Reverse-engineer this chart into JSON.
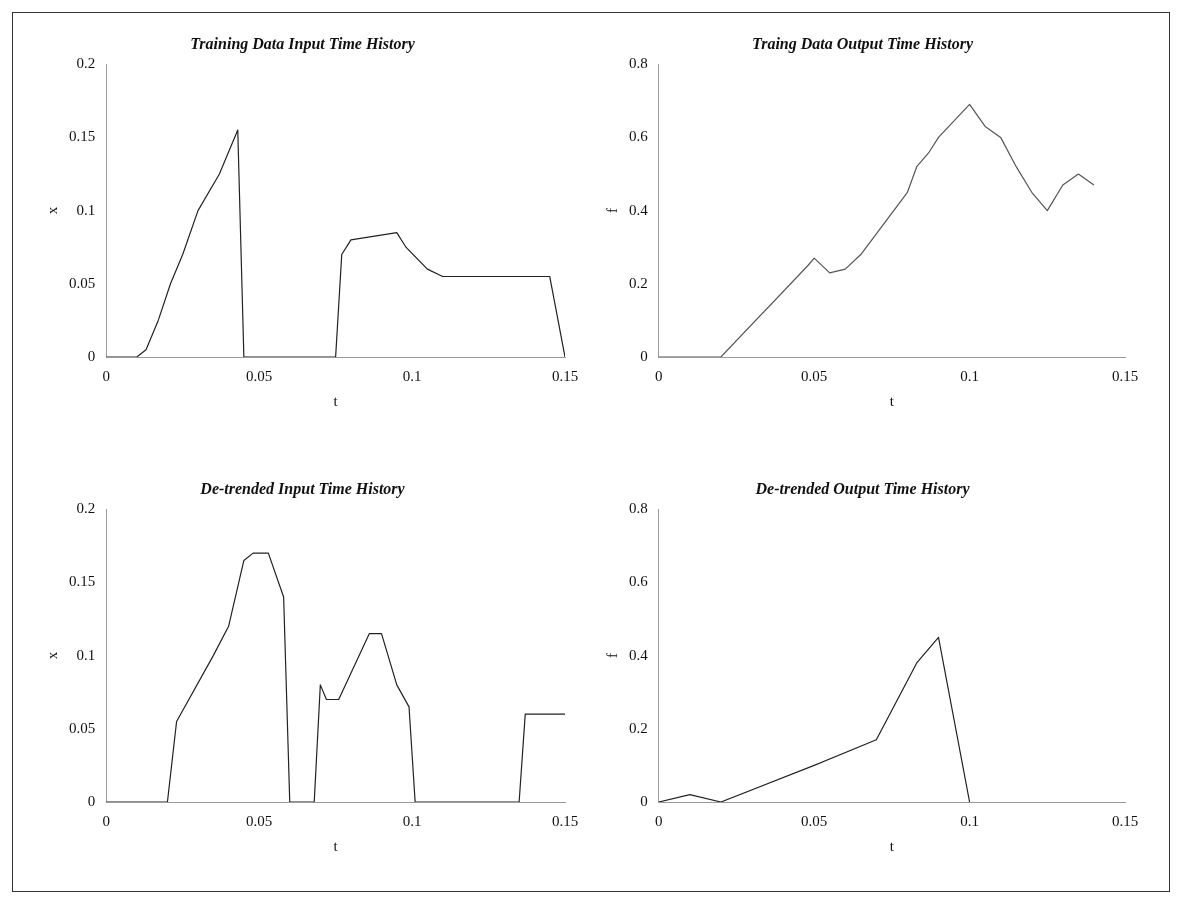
{
  "chart_data": [
    {
      "type": "line",
      "title": "Training Data Input Time History",
      "xlabel": "t",
      "ylabel": "x",
      "xlim": [
        0,
        0.15
      ],
      "xticks": [
        0,
        0.05,
        0.1,
        0.15
      ],
      "ylim": [
        0,
        0.2
      ],
      "yticks": [
        0,
        0.05,
        0.1,
        0.15,
        0.2
      ],
      "grid": false,
      "legend": false,
      "marker": "none",
      "line_style": "solid",
      "series": [
        {
          "color": "#222222",
          "x": [
            0,
            0.01,
            0.013,
            0.017,
            0.021,
            0.025,
            0.03,
            0.037,
            0.043,
            0.045,
            0.075,
            0.077,
            0.08,
            0.095,
            0.098,
            0.105,
            0.11,
            0.145,
            0.15
          ],
          "values": [
            0,
            0,
            0.005,
            0.025,
            0.05,
            0.07,
            0.1,
            0.125,
            0.155,
            0,
            0,
            0.07,
            0.08,
            0.085,
            0.075,
            0.06,
            0.055,
            0.055,
            0
          ]
        }
      ]
    },
    {
      "type": "line",
      "title": "Traing Data Output Time History",
      "xlabel": "t",
      "ylabel": "f",
      "xlim": [
        0,
        0.15
      ],
      "xticks": [
        0,
        0.05,
        0.1,
        0.15
      ],
      "ylim": [
        0,
        0.8
      ],
      "yticks": [
        0,
        0.2,
        0.4,
        0.6,
        0.8
      ],
      "grid": false,
      "legend": false,
      "marker": "none",
      "line_style": "solid",
      "series": [
        {
          "color": "#555555",
          "x": [
            0,
            0.02,
            0.048,
            0.05,
            0.055,
            0.06,
            0.065,
            0.08,
            0.083,
            0.087,
            0.09,
            0.1,
            0.105,
            0.11,
            0.115,
            0.12,
            0.125,
            0.13,
            0.135,
            0.14
          ],
          "values": [
            0,
            0,
            0.25,
            0.27,
            0.23,
            0.24,
            0.28,
            0.45,
            0.52,
            0.56,
            0.6,
            0.69,
            0.63,
            0.6,
            0.52,
            0.45,
            0.4,
            0.47,
            0.5,
            0.47
          ]
        }
      ]
    },
    {
      "type": "line",
      "title": "De-trended Input Time History",
      "xlabel": "t",
      "ylabel": "x",
      "xlim": [
        0,
        0.15
      ],
      "xticks": [
        0,
        0.05,
        0.1,
        0.15
      ],
      "ylim": [
        0,
        0.2
      ],
      "yticks": [
        0,
        0.05,
        0.1,
        0.15,
        0.2
      ],
      "grid": false,
      "legend": false,
      "marker": "none",
      "line_style": "solid",
      "series": [
        {
          "color": "#222222",
          "x": [
            0,
            0.02,
            0.023,
            0.035,
            0.04,
            0.045,
            0.048,
            0.053,
            0.058,
            0.06,
            0.068,
            0.07,
            0.072,
            0.076,
            0.086,
            0.09,
            0.095,
            0.099,
            0.101,
            0.135,
            0.137,
            0.15
          ],
          "values": [
            0,
            0,
            0.055,
            0.1,
            0.12,
            0.165,
            0.17,
            0.17,
            0.14,
            0,
            0,
            0.08,
            0.07,
            0.07,
            0.115,
            0.115,
            0.08,
            0.065,
            0,
            0,
            0.06,
            0.06
          ]
        }
      ]
    },
    {
      "type": "line",
      "title": "De-trended Output Time History",
      "xlabel": "t",
      "ylabel": "f",
      "xlim": [
        0,
        0.15
      ],
      "xticks": [
        0,
        0.05,
        0.1,
        0.15
      ],
      "ylim": [
        0,
        0.8
      ],
      "yticks": [
        0,
        0.2,
        0.4,
        0.6,
        0.8
      ],
      "grid": false,
      "legend": false,
      "marker": "none",
      "line_style": "solid",
      "series": [
        {
          "color": "#222222",
          "x": [
            0,
            0.01,
            0.02,
            0.05,
            0.07,
            0.083,
            0.09,
            0.1
          ],
          "values": [
            0,
            0.02,
            0,
            0.1,
            0.17,
            0.38,
            0.45,
            0
          ]
        }
      ]
    }
  ]
}
